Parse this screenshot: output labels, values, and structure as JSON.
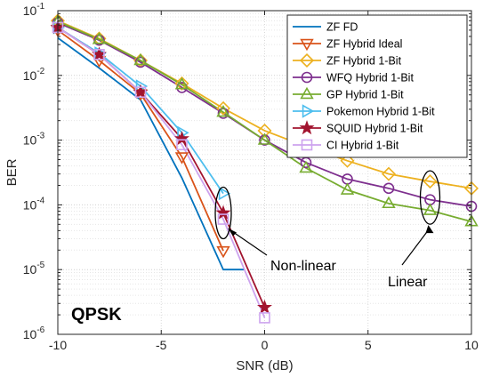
{
  "chart_data": {
    "type": "line",
    "xlabel": "SNR (dB)",
    "ylabel": "BER",
    "xlim": [
      -10,
      10
    ],
    "ylim": [
      1e-06,
      0.1
    ],
    "yscale": "log",
    "grid": true,
    "legend_position": "top-right",
    "x_ticks": [
      -10,
      -5,
      0,
      5,
      10
    ],
    "x_tick_labels": [
      "-10",
      "-5",
      "0",
      "5",
      "10"
    ],
    "y_ticks": [
      1e-06,
      1e-05,
      0.0001,
      0.001,
      0.01,
      0.1
    ],
    "y_tick_labels": [
      {
        "base": "10",
        "exp": "-6"
      },
      {
        "base": "10",
        "exp": "-5"
      },
      {
        "base": "10",
        "exp": "-4"
      },
      {
        "base": "10",
        "exp": "-3"
      },
      {
        "base": "10",
        "exp": "-2"
      },
      {
        "base": "10",
        "exp": "-1"
      }
    ],
    "series": [
      {
        "name": "ZF FD",
        "color": "#0072BD",
        "marker": "none",
        "x": [
          -10,
          -8,
          -6,
          -4,
          -2,
          -1
        ],
        "y": [
          0.038,
          0.013,
          0.0042,
          0.00026,
          1e-05,
          1e-05
        ]
      },
      {
        "name": "ZF Hybrid Ideal",
        "color": "#D95319",
        "marker": "triangle-down",
        "x": [
          -10,
          -8,
          -6,
          -4,
          -2
        ],
        "y": [
          0.05,
          0.017,
          0.0052,
          0.00055,
          1.95e-05
        ]
      },
      {
        "name": "ZF Hybrid 1-Bit",
        "color": "#EDB120",
        "marker": "diamond",
        "x": [
          -10,
          -8,
          -6,
          -4,
          -2,
          0,
          2,
          4,
          6,
          8,
          10
        ],
        "y": [
          0.07,
          0.037,
          0.017,
          0.0075,
          0.0031,
          0.0014,
          0.0008,
          0.00048,
          0.0003,
          0.00023,
          0.00018
        ]
      },
      {
        "name": "WFQ Hybrid 1-Bit",
        "color": "#7E2F8E",
        "marker": "circle",
        "x": [
          -10,
          -8,
          -6,
          -4,
          -2,
          0,
          2,
          4,
          6,
          8,
          10
        ],
        "y": [
          0.065,
          0.035,
          0.016,
          0.0065,
          0.0026,
          0.001,
          0.00045,
          0.00025,
          0.00018,
          0.00012,
          9.5e-05
        ]
      },
      {
        "name": "GP Hybrid 1-Bit",
        "color": "#77AC30",
        "marker": "triangle-up",
        "x": [
          -10,
          -8,
          -6,
          -4,
          -2,
          0,
          2,
          4,
          6,
          8,
          10
        ],
        "y": [
          0.068,
          0.036,
          0.017,
          0.0072,
          0.0027,
          0.001,
          0.00037,
          0.00017,
          0.000105,
          8.2e-05,
          5.5e-05
        ]
      },
      {
        "name": "Pokemon Hybrid 1-Bit",
        "color": "#4DBEEE",
        "marker": "triangle-right",
        "x": [
          -10,
          -8,
          -6,
          -4,
          -2
        ],
        "y": [
          0.055,
          0.022,
          0.0068,
          0.0013,
          0.00015
        ]
      },
      {
        "name": "SQUID Hybrid 1-Bit",
        "color": "#A2142F",
        "marker": "star",
        "x": [
          -10,
          -8,
          -6,
          -4,
          -2,
          0
        ],
        "y": [
          0.055,
          0.021,
          0.0055,
          0.00105,
          7.5e-05,
          2.6e-06
        ]
      },
      {
        "name": "CI Hybrid 1-Bit",
        "color": "#CDA3EE",
        "marker": "square",
        "x": [
          -10,
          -8,
          -6,
          -4,
          -2,
          0
        ],
        "y": [
          0.055,
          0.021,
          0.0055,
          0.00085,
          6e-05,
          1.8e-06
        ]
      }
    ],
    "annotations": [
      {
        "text": "Non-linear",
        "ellipse_center": [
          -2,
          7.5e-05
        ]
      },
      {
        "text": "Linear",
        "ellipse_center": [
          8,
          0.00013
        ]
      },
      {
        "text": "QPSK"
      }
    ]
  }
}
